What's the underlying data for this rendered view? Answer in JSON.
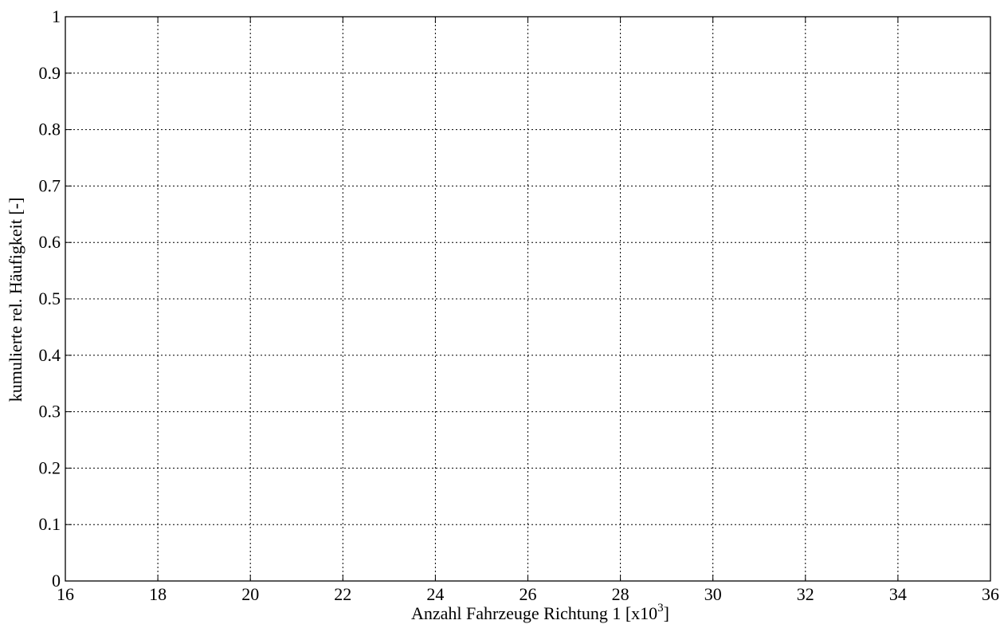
{
  "chart_data": {
    "type": "line",
    "title": "",
    "xlabel": "Anzahl Fahrzeuge Richtung 1 [x10",
    "xlabel_sup": "3",
    "xlabel_suffix": "]",
    "ylabel": "kumulierte rel. Häufigkeit [-]",
    "xlim": [
      16,
      36
    ],
    "ylim": [
      0,
      1
    ],
    "xticks": [
      16,
      18,
      20,
      22,
      24,
      26,
      28,
      30,
      32,
      34,
      36
    ],
    "xtick_labels": [
      "16",
      "18",
      "20",
      "22",
      "24",
      "26",
      "28",
      "30",
      "32",
      "34",
      "36"
    ],
    "yticks": [
      0,
      0.1,
      0.2,
      0.3,
      0.4,
      0.5,
      0.6,
      0.7,
      0.8,
      0.9,
      1
    ],
    "ytick_labels": [
      "0",
      "0.1",
      "0.2",
      "0.3",
      "0.4",
      "0.5",
      "0.6",
      "0.7",
      "0.8",
      "0.9",
      "1"
    ],
    "grid": true,
    "grid_style": "dotted",
    "series": [],
    "colors": {
      "axis": "#000000",
      "grid": "#000000",
      "background": "#ffffff"
    }
  }
}
